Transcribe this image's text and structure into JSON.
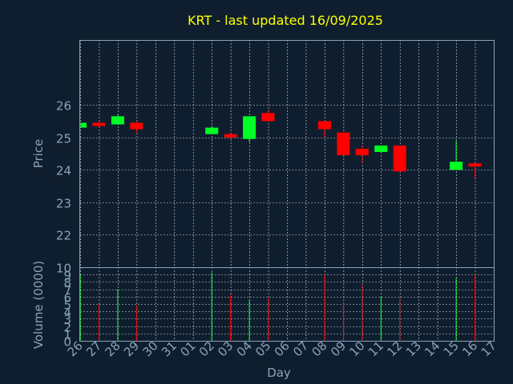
{
  "chart_data": {
    "type": "candlestick",
    "title": "KRT - last updated 16/09/2025",
    "xlabel": "Day",
    "x_ticks": [
      "26",
      "27",
      "28",
      "29",
      "30",
      "31",
      "01",
      "02",
      "03",
      "04",
      "05",
      "06",
      "07",
      "08",
      "09",
      "10",
      "11",
      "12",
      "13",
      "14",
      "15",
      "16",
      "17"
    ],
    "price_panel": {
      "ylabel": "Price",
      "ylim": [
        21,
        28
      ],
      "y_ticks": [
        22,
        23,
        24,
        25,
        26
      ],
      "grid": true
    },
    "volume_panel": {
      "ylabel": "Volume (0000)",
      "ylim": [
        0,
        10
      ],
      "y_ticks": [
        0,
        1,
        2,
        3,
        4,
        5,
        6,
        7,
        8,
        9,
        10
      ],
      "grid": true
    },
    "candles": [
      {
        "day": "26",
        "open": 25.3,
        "close": 25.45,
        "high": 25.45,
        "low": 25.3,
        "volume": 9.0
      },
      {
        "day": "27",
        "open": 25.45,
        "close": 25.35,
        "high": 25.5,
        "low": 25.3,
        "volume": 5.0
      },
      {
        "day": "28",
        "open": 25.4,
        "close": 25.65,
        "high": 25.7,
        "low": 25.4,
        "volume": 7.0
      },
      {
        "day": "29",
        "open": 25.45,
        "close": 25.25,
        "high": 25.5,
        "low": 25.15,
        "volume": 4.8
      },
      {
        "day": "02",
        "open": 25.1,
        "close": 25.3,
        "high": 25.35,
        "low": 25.1,
        "volume": 9.3
      },
      {
        "day": "03",
        "open": 25.1,
        "close": 25.0,
        "high": 25.15,
        "low": 24.95,
        "volume": 6.3
      },
      {
        "day": "04",
        "open": 24.95,
        "close": 25.65,
        "high": 25.65,
        "low": 24.85,
        "volume": 5.6
      },
      {
        "day": "05",
        "open": 25.75,
        "close": 25.5,
        "high": 25.85,
        "low": 25.5,
        "volume": 5.8
      },
      {
        "day": "08",
        "open": 25.5,
        "close": 25.25,
        "high": 25.5,
        "low": 25.0,
        "volume": 9.0
      },
      {
        "day": "09",
        "open": 25.15,
        "close": 24.45,
        "high": 25.15,
        "low": 24.45,
        "volume": 5.3
      },
      {
        "day": "10",
        "open": 24.65,
        "close": 24.45,
        "high": 24.75,
        "low": 24.2,
        "volume": 7.7
      },
      {
        "day": "11",
        "open": 24.55,
        "close": 24.75,
        "high": 24.75,
        "low": 24.55,
        "volume": 6.0
      },
      {
        "day": "12",
        "open": 24.75,
        "close": 23.95,
        "high": 24.75,
        "low": 23.95,
        "volume": 5.8
      },
      {
        "day": "15",
        "open": 24.0,
        "close": 24.25,
        "high": 24.9,
        "low": 24.0,
        "volume": 8.5
      },
      {
        "day": "16",
        "open": 24.2,
        "close": 24.1,
        "high": 24.2,
        "low": 23.75,
        "volume": 9.0
      }
    ]
  },
  "colors": {
    "background": "#0f1e2e",
    "up": "#00ff22",
    "down": "#ff0000",
    "grid": "#ffffff",
    "axis": "#8aa2bd",
    "title": "#ffff00"
  }
}
